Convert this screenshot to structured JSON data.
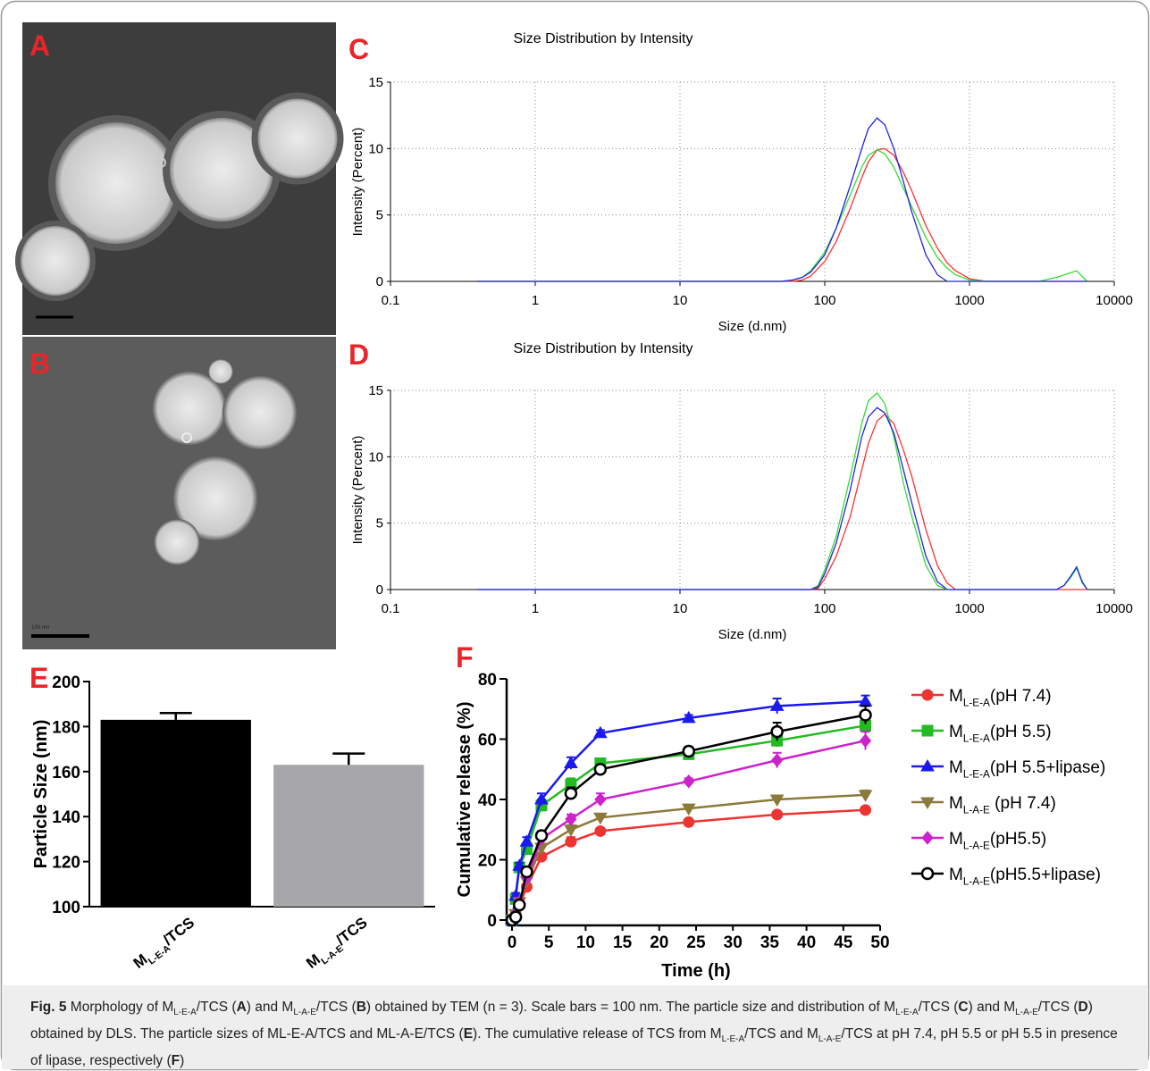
{
  "panel_labels": [
    "A",
    "B",
    "C",
    "D",
    "E",
    "F"
  ],
  "tem": {
    "scale_label": "100 nm"
  },
  "chart_data": [
    {
      "type": "line",
      "title": "Size Distribution by Intensity",
      "xlabel": "Size (d.nm)",
      "ylabel": "Intensity (Percent)",
      "xscale": "log",
      "xlim": [
        0.1,
        10000
      ],
      "xticks": [
        0.1,
        1,
        10,
        100,
        1000,
        10000
      ],
      "ylim": [
        0,
        15
      ],
      "yticks": [
        0,
        5,
        10,
        15
      ],
      "grid": true,
      "x": [
        0.4,
        50,
        60,
        70,
        80,
        100,
        120,
        150,
        180,
        200,
        230,
        260,
        300,
        350,
        400,
        500,
        600,
        700,
        800,
        1000,
        1300,
        3000,
        4000,
        5500,
        6500
      ],
      "series": [
        {
          "color": "#ff3030",
          "values": [
            0,
            0,
            0,
            0.1,
            0.4,
            1.5,
            3,
            5.5,
            7.8,
            9,
            9.9,
            10,
            9.5,
            8.2,
            6.8,
            4.2,
            2.5,
            1.4,
            0.8,
            0.2,
            0,
            0,
            0,
            0,
            0
          ]
        },
        {
          "color": "#33dd33",
          "values": [
            0,
            0,
            0.1,
            0.3,
            0.8,
            2.2,
            4,
            6.5,
            8.6,
            9.5,
            9.9,
            9.6,
            8.6,
            7,
            5.6,
            3.3,
            1.8,
            1,
            0.5,
            0.1,
            0,
            0,
            0.3,
            0.8,
            0
          ]
        },
        {
          "color": "#2222ee",
          "values": [
            0,
            0,
            0.1,
            0.3,
            0.7,
            2,
            4,
            7.2,
            10,
            11.5,
            12.3,
            11.8,
            10,
            7.5,
            5.2,
            2,
            0.5,
            0,
            0,
            0,
            0,
            0,
            0,
            0,
            0
          ]
        }
      ]
    },
    {
      "type": "line",
      "title": "Size Distribution by Intensity",
      "xlabel": "Size (d.nm)",
      "ylabel": "Intensity (Percent)",
      "xscale": "log",
      "xlim": [
        0.1,
        10000
      ],
      "xticks": [
        0.1,
        1,
        10,
        100,
        1000,
        10000
      ],
      "ylim": [
        0,
        15
      ],
      "yticks": [
        0,
        5,
        10,
        15
      ],
      "grid": true,
      "x": [
        0.4,
        80,
        90,
        100,
        120,
        150,
        180,
        200,
        230,
        260,
        300,
        350,
        400,
        500,
        600,
        700,
        800,
        1000,
        4000,
        4500,
        5000,
        5500,
        6000,
        6500
      ],
      "series": [
        {
          "color": "#ff3030",
          "values": [
            0,
            0,
            0.1,
            0.8,
            2.5,
            5.5,
            9,
            11,
            12.7,
            13.2,
            12.5,
            10.5,
            8.5,
            4.5,
            1.8,
            0.5,
            0,
            0,
            0,
            0,
            0,
            0,
            0,
            0
          ]
        },
        {
          "color": "#33dd33",
          "values": [
            0,
            0,
            0.3,
            1.5,
            4,
            8.5,
            12.5,
            14.2,
            14.8,
            14,
            11.5,
            8,
            5.5,
            1.8,
            0.3,
            0,
            0,
            0,
            0,
            0.3,
            0.9,
            1.6,
            0.5,
            0
          ]
        },
        {
          "color": "#2222ee",
          "values": [
            0,
            0,
            0.2,
            1.2,
            3.5,
            7.5,
            11.5,
            13,
            13.7,
            13.3,
            11.8,
            9,
            6.5,
            2.5,
            0.6,
            0,
            0,
            0,
            0,
            0.3,
            1,
            1.7,
            0.6,
            0
          ]
        }
      ]
    },
    {
      "type": "bar",
      "ylabel": "Particle Size (nm)",
      "categories": [
        {
          "main": "M",
          "sub": "L-E-A",
          "rest": "/TCS"
        },
        {
          "main": "M",
          "sub": "L-A-E",
          "rest": "/TCS"
        }
      ],
      "values": [
        183,
        163
      ],
      "errors": [
        3,
        5
      ],
      "colors": [
        "#000000",
        "#a7a7ab"
      ],
      "ylim": [
        100,
        200
      ],
      "yticks": [
        100,
        120,
        140,
        160,
        180,
        200
      ]
    },
    {
      "type": "line",
      "xlabel": "Time (h)",
      "ylabel": "Cumulative release (%)",
      "xlim": [
        0,
        50
      ],
      "xticks": [
        0,
        5,
        10,
        15,
        20,
        25,
        30,
        35,
        40,
        45,
        50
      ],
      "ylim": [
        0,
        80
      ],
      "yticks": [
        0,
        20,
        40,
        60,
        80
      ],
      "legend": "right",
      "x": [
        0,
        0.5,
        1,
        2,
        4,
        8,
        12,
        24,
        36,
        48
      ],
      "series": [
        {
          "name": {
            "main": "M",
            "sub": "L-E-A",
            "rest": "(pH 7.4)"
          },
          "color": "#ee3333",
          "marker": "circle",
          "values": [
            0,
            2,
            5,
            11,
            21,
            26,
            29.5,
            32.5,
            35,
            36.5
          ],
          "errors": [
            0.5,
            0.5,
            1,
            1,
            1,
            1.5,
            1,
            1,
            1,
            1
          ]
        },
        {
          "name": {
            "main": "M",
            "sub": "L-E-A",
            "rest": "(pH 5.5)"
          },
          "color": "#22bb22",
          "marker": "square",
          "values": [
            0,
            7,
            17.5,
            23.5,
            38,
            45,
            52,
            55,
            59.5,
            64.5
          ],
          "errors": [
            0.5,
            1,
            1,
            1.5,
            2,
            2,
            1.5,
            1.5,
            2,
            2
          ]
        },
        {
          "name": {
            "main": "M",
            "sub": "L-E-A",
            "rest": "(pH 5.5+lipase)"
          },
          "color": "#1a1aee",
          "marker": "triangle-up",
          "values": [
            0,
            8,
            18,
            26,
            40,
            52,
            62,
            67,
            71,
            72.5
          ],
          "errors": [
            0.5,
            1,
            1,
            1.5,
            2,
            2,
            1,
            1,
            2.5,
            2
          ]
        },
        {
          "name": {
            "main": "M",
            "sub": "L-A-E",
            "rest": " (pH 7.4)"
          },
          "color": "#8b7a3a",
          "marker": "triangle-down",
          "values": [
            0,
            2,
            6,
            13,
            24,
            30,
            34,
            37,
            40,
            41.5
          ],
          "errors": [
            0.5,
            0.5,
            1,
            1,
            1,
            1.5,
            1,
            1,
            1,
            1.5
          ]
        },
        {
          "name": {
            "main": "M",
            "sub": "L-A-E",
            "rest": "(pH5.5)"
          },
          "color": "#cc22cc",
          "marker": "diamond",
          "values": [
            0,
            2,
            6,
            14,
            27,
            33.5,
            40,
            46,
            53,
            59.5
          ],
          "errors": [
            0.5,
            0.5,
            1,
            1,
            1.5,
            1.5,
            2,
            1,
            2.5,
            3
          ]
        },
        {
          "name": {
            "main": "M",
            "sub": "L-A-E",
            "rest": "(pH5.5+lipase)"
          },
          "color": "#000000",
          "marker": "open-circle",
          "values": [
            0,
            1,
            5,
            16,
            28,
            42,
            50,
            56,
            62.5,
            68
          ],
          "errors": [
            0.5,
            0.5,
            1,
            1,
            1.5,
            2,
            1.5,
            1.5,
            3,
            3
          ]
        }
      ]
    }
  ],
  "caption": {
    "runs": [
      {
        "text": "Fig. 5",
        "style": "bold"
      },
      {
        "text": "  Morphology of M"
      },
      {
        "text": "L-E-A",
        "style": "sub"
      },
      {
        "text": "/TCS ("
      },
      {
        "text": "A",
        "style": "bold"
      },
      {
        "text": ") and M"
      },
      {
        "text": "L-A-E",
        "style": "sub"
      },
      {
        "text": "/TCS ("
      },
      {
        "text": "B",
        "style": "bold"
      },
      {
        "text": ") obtained by TEM (n = 3). Scale bars = 100 nm. The particle size and distribution of M"
      },
      {
        "text": "L-E-A",
        "style": "sub"
      },
      {
        "text": "/TCS ("
      },
      {
        "text": "C",
        "style": "bold"
      },
      {
        "text": ") and M"
      },
      {
        "text": "L-A-E",
        "style": "sub"
      },
      {
        "text": "/TCS ("
      },
      {
        "text": "D",
        "style": "bold"
      },
      {
        "text": ") obtained by DLS. The particle sizes of ML-E-A/TCS and ML-A-E/TCS ("
      },
      {
        "text": "E",
        "style": "bold"
      },
      {
        "text": "). The cumulative release of TCS from M"
      },
      {
        "text": "L-E-A",
        "style": "sub"
      },
      {
        "text": "/TCS and M"
      },
      {
        "text": "L-A-E",
        "style": "sub"
      },
      {
        "text": "/TCS at pH 7.4, pH 5.5 or pH 5.5 in presence of lipase, respectively ("
      },
      {
        "text": "F",
        "style": "bold"
      },
      {
        "text": ")"
      }
    ]
  }
}
